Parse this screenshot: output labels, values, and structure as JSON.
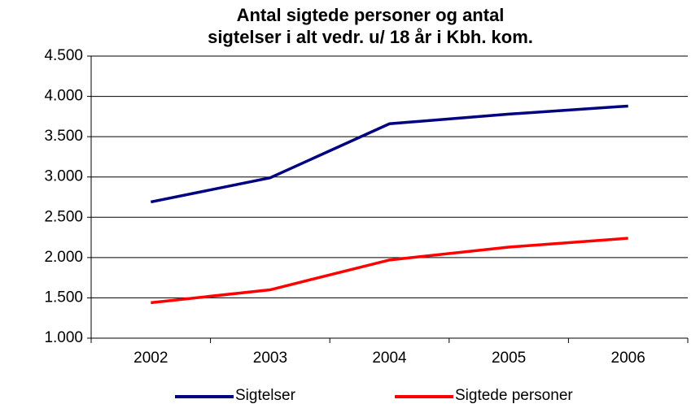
{
  "chart_data": {
    "type": "line",
    "title": [
      "Antal sigtede personer og antal",
      "sigtelser i alt vedr. u/ 18 år i Kbh. kom."
    ],
    "categories": [
      "2002",
      "2003",
      "2004",
      "2005",
      "2006"
    ],
    "series": [
      {
        "name": "Sigtelser",
        "color": "#000080",
        "values": [
          2690,
          2990,
          3660,
          3780,
          3880
        ]
      },
      {
        "name": "Sigtede personer",
        "color": "#ff0000",
        "values": [
          1440,
          1600,
          1970,
          2130,
          2240
        ]
      }
    ],
    "ylim": [
      1000,
      4500
    ],
    "yticks": [
      {
        "value": 1000,
        "label": "1.000"
      },
      {
        "value": 1500,
        "label": "1.500"
      },
      {
        "value": 2000,
        "label": "2.000"
      },
      {
        "value": 2500,
        "label": "2.500"
      },
      {
        "value": 3000,
        "label": "3.000"
      },
      {
        "value": 3500,
        "label": "3.500"
      },
      {
        "value": 4000,
        "label": "4.000"
      },
      {
        "value": 4500,
        "label": "4.500"
      }
    ],
    "grid": true,
    "legend": "bottom"
  }
}
